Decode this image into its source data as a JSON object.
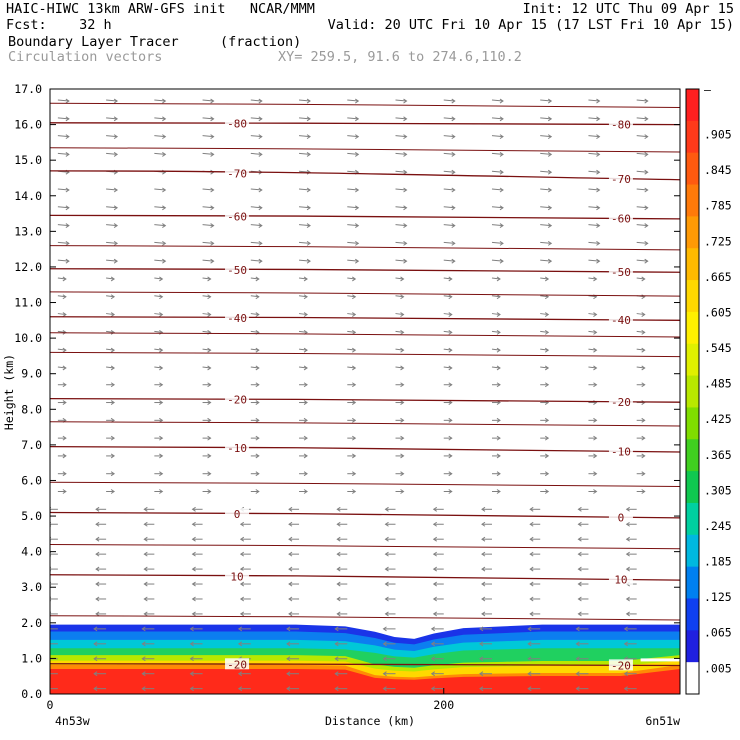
{
  "header": {
    "line1_left": "HAIC-HIWC 13km ARW-GFS init   NCAR/MMM",
    "line1_right": "Init: 12 UTC Thu 09 Apr 15",
    "line2_left": "Fcst:    32 h",
    "line2_right": "Valid: 20 UTC Fri 10 Apr 15 (17 LST Fri 10 Apr 15)",
    "field_name": "Boundary Layer Tracer",
    "field_units": "(fraction)",
    "vector_name": "Circulation vectors",
    "xy_text": "XY= 259.5, 91.6 to 274.6,110.2"
  },
  "chart_data": {
    "type": "heatmap",
    "title": "Boundary Layer Tracer",
    "ylabel": "Height (km)",
    "xlabel": "Distance (km)",
    "xlim": [
      0,
      320
    ],
    "ylim": [
      0,
      17
    ],
    "y_ticks": [
      "0.0",
      "1.0",
      "2.0",
      "3.0",
      "4.0",
      "5.0",
      "6.0",
      "7.0",
      "8.0",
      "9.0",
      "10.0",
      "11.0",
      "12.0",
      "13.0",
      "14.0",
      "15.0",
      "16.0",
      "17.0"
    ],
    "x_ticks": [
      {
        "value": 0,
        "label": "0"
      },
      {
        "value": 200,
        "label": "200"
      }
    ],
    "x_end_labels": {
      "left": "4n53w",
      "right": "6n51w"
    },
    "colorbar": {
      "labels": [
        "–",
        ".905",
        ".845",
        ".785",
        ".725",
        ".665",
        ".605",
        ".545",
        ".485",
        ".425",
        ".365",
        ".305",
        ".245",
        ".185",
        ".125",
        ".065",
        ".005"
      ],
      "colors": [
        "#ff2020",
        "#ff3a1a",
        "#ff5a10",
        "#ff7a0a",
        "#ff9a05",
        "#ffba00",
        "#ffd800",
        "#fff000",
        "#e0f000",
        "#b8e800",
        "#80dd00",
        "#40d020",
        "#10c850",
        "#00d0a0",
        "#00b8e0",
        "#0080f0",
        "#1040f0",
        "#2020e0",
        "#ffffff"
      ]
    },
    "tracer_profile": {
      "x": [
        0,
        25,
        50,
        75,
        100,
        125,
        150,
        165,
        175,
        185,
        195,
        210,
        230,
        250,
        270,
        290,
        320
      ],
      "top_km": [
        1.95,
        1.95,
        1.95,
        1.95,
        1.95,
        1.95,
        1.9,
        1.75,
        1.6,
        1.55,
        1.7,
        1.85,
        1.9,
        1.95,
        1.95,
        1.95,
        1.95
      ]
    },
    "contours": [
      {
        "label": "10",
        "left": 3.35,
        "right": 3.2
      },
      {
        "label": "0",
        "left": 5.1,
        "right": 4.95
      },
      {
        "label": "-10",
        "left": 6.95,
        "right": 6.8
      },
      {
        "label": "-20",
        "left": 8.3,
        "right": 8.2
      },
      {
        "label": "-50",
        "left": 11.95,
        "right": 11.85
      },
      {
        "label": "-40",
        "left": 10.6,
        "right": 10.5
      },
      {
        "label": "-60",
        "left": 13.45,
        "right": 13.35
      },
      {
        "label": "-70",
        "left": 14.7,
        "right": 14.45
      },
      {
        "label": "-80",
        "left": 16.05,
        "right": 16.0
      },
      {
        "label": "-20",
        "left": 0.85,
        "right": 0.8
      }
    ]
  }
}
